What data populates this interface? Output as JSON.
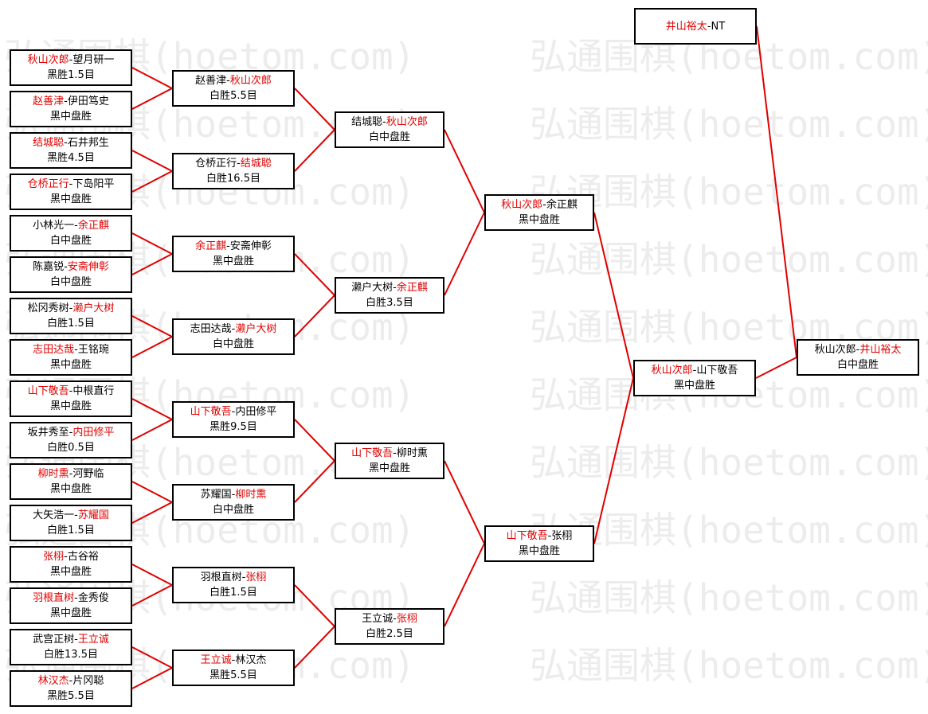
{
  "watermark": "弘通围棋(hoetom.com)",
  "colors": {
    "winner": "#e00000",
    "line": "#e00000",
    "border": "#000000"
  },
  "separator": "-",
  "rounds": [
    [
      {
        "p1": "秋山次郎",
        "p2": "望月研一",
        "winner": 1,
        "result": "黑胜1.5目"
      },
      {
        "p1": "赵善津",
        "p2": "伊田笃史",
        "winner": 1,
        "result": "黑中盘胜"
      },
      {
        "p1": "结城聪",
        "p2": "石井邦生",
        "winner": 1,
        "result": "黑胜4.5目"
      },
      {
        "p1": "仓桥正行",
        "p2": "下岛阳平",
        "winner": 1,
        "result": "黑中盘胜"
      },
      {
        "p1": "小林光一",
        "p2": "余正麒",
        "winner": 2,
        "result": "白中盘胜"
      },
      {
        "p1": "陈嘉锐",
        "p2": "安斋伸彰",
        "winner": 2,
        "result": "白中盘胜"
      },
      {
        "p1": "松冈秀树",
        "p2": "濑户大树",
        "winner": 2,
        "result": "白胜1.5目"
      },
      {
        "p1": "志田达哉",
        "p2": "王铭琬",
        "winner": 1,
        "result": "黑中盘胜"
      },
      {
        "p1": "山下敬吾",
        "p2": "中根直行",
        "winner": 1,
        "result": "黑中盘胜"
      },
      {
        "p1": "坂井秀至",
        "p2": "内田修平",
        "winner": 2,
        "result": "白胜0.5目"
      },
      {
        "p1": "柳时熏",
        "p2": "河野临",
        "winner": 1,
        "result": "黑中盘胜"
      },
      {
        "p1": "大矢浩一",
        "p2": "苏耀国",
        "winner": 2,
        "result": "白胜1.5目"
      },
      {
        "p1": "张栩",
        "p2": "古谷裕",
        "winner": 1,
        "result": "黑中盘胜"
      },
      {
        "p1": "羽根直树",
        "p2": "金秀俊",
        "winner": 1,
        "result": "黑中盘胜"
      },
      {
        "p1": "武宫正树",
        "p2": "王立诚",
        "winner": 2,
        "result": "白胜13.5目"
      },
      {
        "p1": "林汉杰",
        "p2": "片冈聪",
        "winner": 1,
        "result": "黑胜5.5目"
      }
    ],
    [
      {
        "p1": "赵善津",
        "p2": "秋山次郎",
        "winner": 2,
        "result": "白胜5.5目"
      },
      {
        "p1": "仓桥正行",
        "p2": "结城聪",
        "winner": 2,
        "result": "白胜16.5目"
      },
      {
        "p1": "余正麒",
        "p2": "安斋伸彰",
        "winner": 1,
        "result": "黑中盘胜"
      },
      {
        "p1": "志田达哉",
        "p2": "濑户大树",
        "winner": 2,
        "result": "白中盘胜"
      },
      {
        "p1": "山下敬吾",
        "p2": "内田修平",
        "winner": 1,
        "result": "黑胜9.5目"
      },
      {
        "p1": "苏耀国",
        "p2": "柳时熏",
        "winner": 2,
        "result": "白中盘胜"
      },
      {
        "p1": "羽根直树",
        "p2": "张栩",
        "winner": 2,
        "result": "白胜1.5目"
      },
      {
        "p1": "王立诚",
        "p2": "林汉杰",
        "winner": 1,
        "result": "黑胜5.5目"
      }
    ],
    [
      {
        "p1": "结城聪",
        "p2": "秋山次郎",
        "winner": 2,
        "result": "白中盘胜"
      },
      {
        "p1": "濑户大树",
        "p2": "余正麒",
        "winner": 2,
        "result": "白胜3.5目"
      },
      {
        "p1": "山下敬吾",
        "p2": "柳时熏",
        "winner": 1,
        "result": "黑中盘胜"
      },
      {
        "p1": "王立诚",
        "p2": "张栩",
        "winner": 2,
        "result": "白胜2.5目"
      }
    ],
    [
      {
        "p1": "秋山次郎",
        "p2": "余正麒",
        "winner": 1,
        "result": "黑中盘胜"
      },
      {
        "p1": "山下敬吾",
        "p2": "张栩",
        "winner": 1,
        "result": "黑中盘胜"
      }
    ],
    [
      {
        "p1": "秋山次郎",
        "p2": "山下敬吾",
        "winner": 1,
        "result": "黑中盘胜"
      }
    ]
  ],
  "seed": {
    "p1": "井山裕太",
    "p2": "NT",
    "winner": 1,
    "result": ""
  },
  "final": {
    "p1": "秋山次郎",
    "p2": "井山裕太",
    "winner": 2,
    "result": "白中盘胜"
  }
}
